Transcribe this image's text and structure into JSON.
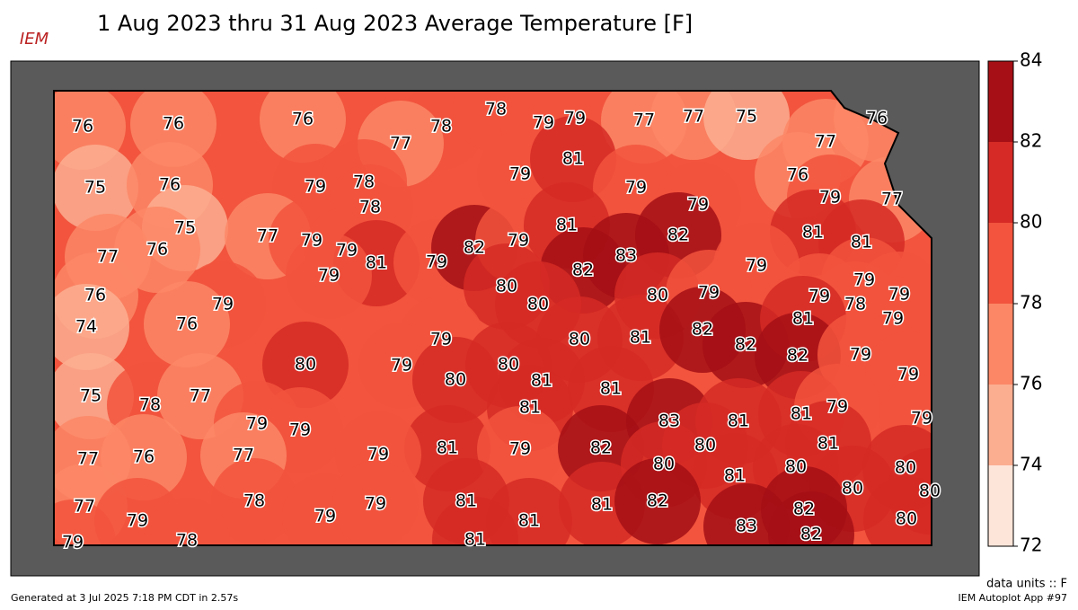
{
  "header": {
    "logo": "IEM",
    "title": "1 Aug 2023 thru 31 Aug 2023 Average Temperature [F]"
  },
  "colorbar": {
    "levels": [
      72,
      74,
      76,
      78,
      80,
      82,
      84
    ],
    "colors": [
      "#fee5d9",
      "#fcae91",
      "#fb8766",
      "#f2543d",
      "#d52a25",
      "#a50f15"
    ],
    "ticks": [
      72,
      74,
      76,
      78,
      80,
      82,
      84
    ]
  },
  "stations": [
    76,
    76,
    76,
    78,
    78,
    79,
    79,
    77,
    77,
    75,
    76,
    77,
    77,
    75,
    76,
    79,
    78,
    78,
    79,
    81,
    79,
    79,
    76,
    79,
    77,
    75,
    77,
    79,
    79,
    81,
    79,
    79,
    82,
    79,
    81,
    82,
    81,
    81,
    77,
    76,
    83,
    82,
    79,
    76,
    79,
    80,
    80,
    80,
    79,
    79,
    78,
    79,
    79,
    79,
    74,
    76,
    79,
    80,
    81,
    82,
    82,
    81,
    82,
    79,
    79,
    75,
    78,
    77,
    80,
    79,
    80,
    80,
    81,
    81,
    81,
    79,
    79,
    81,
    79,
    82,
    83,
    81,
    81,
    79,
    80,
    81,
    79,
    77,
    76,
    77,
    79,
    80,
    81,
    80,
    80,
    80,
    80,
    77,
    79,
    78,
    79,
    79,
    81,
    81,
    81,
    82,
    83,
    82,
    80,
    79,
    78,
    81,
    82
  ],
  "footer": {
    "units": "data units :: F",
    "generated": "Generated at 3 Jul 2025 7:18 PM CDT in 2.57s",
    "app": "IEM Autoplot App #97"
  }
}
